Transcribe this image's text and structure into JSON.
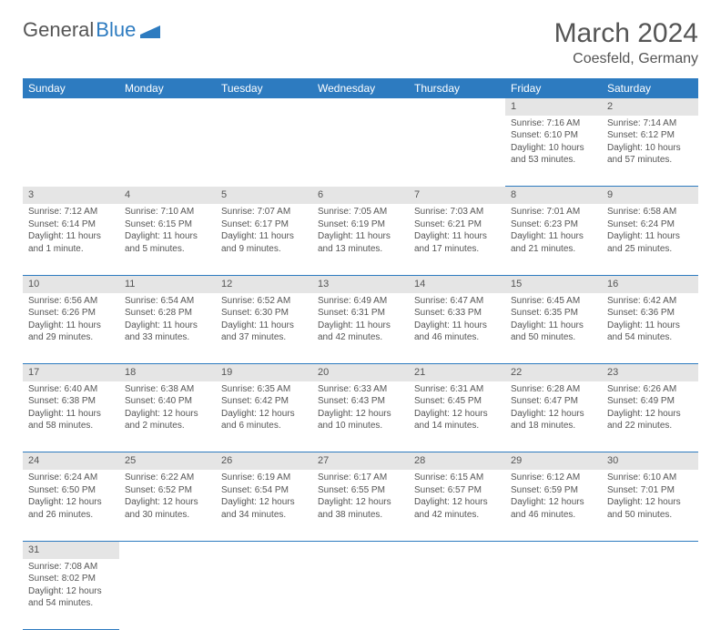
{
  "logo": {
    "part1": "General",
    "part2": "Blue"
  },
  "title": "March 2024",
  "location": "Coesfeld, Germany",
  "colors": {
    "header_bg": "#2d7bc0",
    "header_fg": "#ffffff",
    "daynum_bg": "#e5e5e5",
    "text": "#555555",
    "row_border": "#2d7bc0"
  },
  "daysOfWeek": [
    "Sunday",
    "Monday",
    "Tuesday",
    "Wednesday",
    "Thursday",
    "Friday",
    "Saturday"
  ],
  "grid": [
    [
      null,
      null,
      null,
      null,
      null,
      {
        "n": "1",
        "sr": "7:16 AM",
        "ss": "6:10 PM",
        "dl": "10 hours and 53 minutes."
      },
      {
        "n": "2",
        "sr": "7:14 AM",
        "ss": "6:12 PM",
        "dl": "10 hours and 57 minutes."
      }
    ],
    [
      {
        "n": "3",
        "sr": "7:12 AM",
        "ss": "6:14 PM",
        "dl": "11 hours and 1 minute."
      },
      {
        "n": "4",
        "sr": "7:10 AM",
        "ss": "6:15 PM",
        "dl": "11 hours and 5 minutes."
      },
      {
        "n": "5",
        "sr": "7:07 AM",
        "ss": "6:17 PM",
        "dl": "11 hours and 9 minutes."
      },
      {
        "n": "6",
        "sr": "7:05 AM",
        "ss": "6:19 PM",
        "dl": "11 hours and 13 minutes."
      },
      {
        "n": "7",
        "sr": "7:03 AM",
        "ss": "6:21 PM",
        "dl": "11 hours and 17 minutes."
      },
      {
        "n": "8",
        "sr": "7:01 AM",
        "ss": "6:23 PM",
        "dl": "11 hours and 21 minutes."
      },
      {
        "n": "9",
        "sr": "6:58 AM",
        "ss": "6:24 PM",
        "dl": "11 hours and 25 minutes."
      }
    ],
    [
      {
        "n": "10",
        "sr": "6:56 AM",
        "ss": "6:26 PM",
        "dl": "11 hours and 29 minutes."
      },
      {
        "n": "11",
        "sr": "6:54 AM",
        "ss": "6:28 PM",
        "dl": "11 hours and 33 minutes."
      },
      {
        "n": "12",
        "sr": "6:52 AM",
        "ss": "6:30 PM",
        "dl": "11 hours and 37 minutes."
      },
      {
        "n": "13",
        "sr": "6:49 AM",
        "ss": "6:31 PM",
        "dl": "11 hours and 42 minutes."
      },
      {
        "n": "14",
        "sr": "6:47 AM",
        "ss": "6:33 PM",
        "dl": "11 hours and 46 minutes."
      },
      {
        "n": "15",
        "sr": "6:45 AM",
        "ss": "6:35 PM",
        "dl": "11 hours and 50 minutes."
      },
      {
        "n": "16",
        "sr": "6:42 AM",
        "ss": "6:36 PM",
        "dl": "11 hours and 54 minutes."
      }
    ],
    [
      {
        "n": "17",
        "sr": "6:40 AM",
        "ss": "6:38 PM",
        "dl": "11 hours and 58 minutes."
      },
      {
        "n": "18",
        "sr": "6:38 AM",
        "ss": "6:40 PM",
        "dl": "12 hours and 2 minutes."
      },
      {
        "n": "19",
        "sr": "6:35 AM",
        "ss": "6:42 PM",
        "dl": "12 hours and 6 minutes."
      },
      {
        "n": "20",
        "sr": "6:33 AM",
        "ss": "6:43 PM",
        "dl": "12 hours and 10 minutes."
      },
      {
        "n": "21",
        "sr": "6:31 AM",
        "ss": "6:45 PM",
        "dl": "12 hours and 14 minutes."
      },
      {
        "n": "22",
        "sr": "6:28 AM",
        "ss": "6:47 PM",
        "dl": "12 hours and 18 minutes."
      },
      {
        "n": "23",
        "sr": "6:26 AM",
        "ss": "6:49 PM",
        "dl": "12 hours and 22 minutes."
      }
    ],
    [
      {
        "n": "24",
        "sr": "6:24 AM",
        "ss": "6:50 PM",
        "dl": "12 hours and 26 minutes."
      },
      {
        "n": "25",
        "sr": "6:22 AM",
        "ss": "6:52 PM",
        "dl": "12 hours and 30 minutes."
      },
      {
        "n": "26",
        "sr": "6:19 AM",
        "ss": "6:54 PM",
        "dl": "12 hours and 34 minutes."
      },
      {
        "n": "27",
        "sr": "6:17 AM",
        "ss": "6:55 PM",
        "dl": "12 hours and 38 minutes."
      },
      {
        "n": "28",
        "sr": "6:15 AM",
        "ss": "6:57 PM",
        "dl": "12 hours and 42 minutes."
      },
      {
        "n": "29",
        "sr": "6:12 AM",
        "ss": "6:59 PM",
        "dl": "12 hours and 46 minutes."
      },
      {
        "n": "30",
        "sr": "6:10 AM",
        "ss": "7:01 PM",
        "dl": "12 hours and 50 minutes."
      }
    ],
    [
      {
        "n": "31",
        "sr": "7:08 AM",
        "ss": "8:02 PM",
        "dl": "12 hours and 54 minutes."
      },
      null,
      null,
      null,
      null,
      null,
      null
    ]
  ],
  "labels": {
    "sunrise": "Sunrise:",
    "sunset": "Sunset:",
    "daylight": "Daylight:"
  }
}
